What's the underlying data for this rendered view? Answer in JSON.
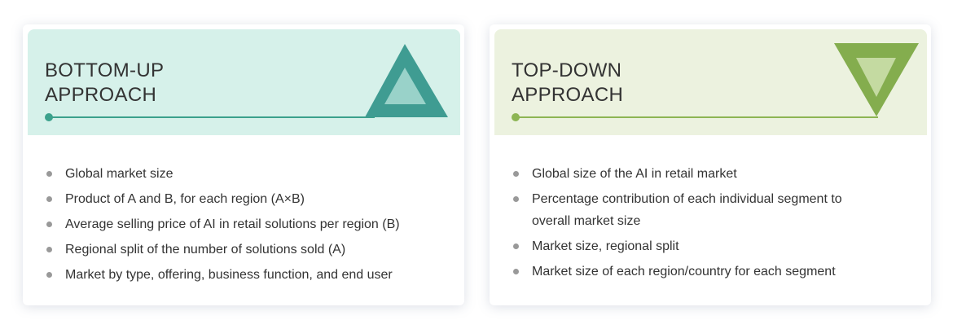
{
  "bottom_up": {
    "title": "BOTTOM-UP\nAPPROACH",
    "color": "#d6f1ea",
    "accent": "#3ba18c",
    "icon": "triangle-up-icon",
    "items": [
      "Global market size",
      "Product of A and B, for each region (A×B)",
      "Average selling price of AI in retail solutions per region (B)",
      "Regional split of the number of solutions sold (A)",
      "Market by type, offering, business function, and end user"
    ]
  },
  "top_down": {
    "title": "TOP-DOWN\nAPPROACH",
    "color": "#ecf2df",
    "accent": "#8db554",
    "icon": "triangle-down-icon",
    "items": [
      "Global size of the AI in retail market",
      "Percentage contribution of each individual segment to overall market size",
      "Market size, regional split",
      "Market size of each region/country for each segment"
    ]
  }
}
